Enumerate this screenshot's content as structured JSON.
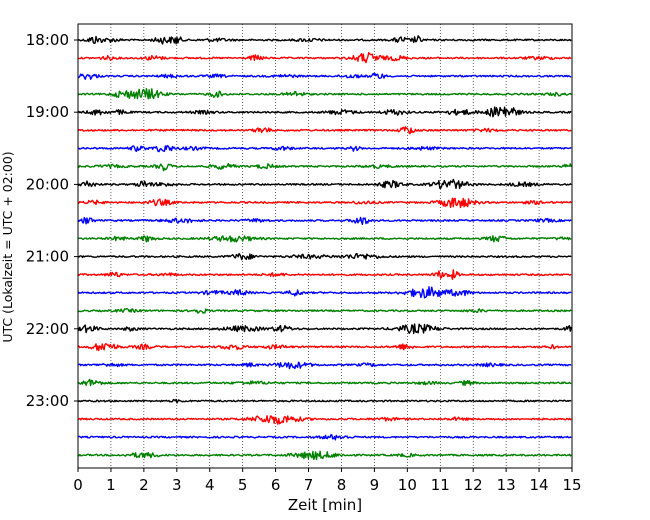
{
  "chart_data": {
    "type": "line",
    "title": "",
    "xlabel": "Zeit  [min]",
    "ylabel": "UTC (Lokalzeit = UTC + 02:00)",
    "xlim": [
      0,
      15
    ],
    "x_ticks": [
      "0",
      "1",
      "2",
      "3",
      "4",
      "5",
      "6",
      "7",
      "8",
      "9",
      "10",
      "11",
      "12",
      "13",
      "14",
      "15"
    ],
    "y_ticks": [
      "18:00",
      "19:00",
      "20:00",
      "21:00",
      "22:00",
      "23:00"
    ],
    "grid": "vertical dotted",
    "trace_count": 24,
    "first_trace": "18:00",
    "trace_interval_min": 15,
    "colors": [
      "#000000",
      "#ff0000",
      "#0000ff",
      "#008000"
    ],
    "series": [
      {
        "trace": "18:00",
        "color": "black",
        "bursts": [
          [
            0.5,
            0.45,
            0.3
          ],
          [
            1.0,
            0.2,
            0.4
          ],
          [
            2.6,
            0.4,
            0.4
          ],
          [
            3.0,
            0.5,
            0.2
          ],
          [
            4.2,
            0.15,
            0.6
          ],
          [
            7.0,
            0.15,
            0.6
          ],
          [
            9.8,
            0.35,
            0.3
          ],
          [
            10.3,
            0.45,
            0.2
          ]
        ]
      },
      {
        "trace": "18:15",
        "color": "red",
        "bursts": [
          [
            0.9,
            0.2,
            0.3
          ],
          [
            2.3,
            0.25,
            0.4
          ],
          [
            5.4,
            0.3,
            0.3
          ],
          [
            8.8,
            0.6,
            0.6
          ],
          [
            9.7,
            0.25,
            0.4
          ],
          [
            14.0,
            0.15,
            0.6
          ]
        ]
      },
      {
        "trace": "18:30",
        "color": "blue",
        "bursts": [
          [
            0.3,
            0.35,
            0.4
          ],
          [
            2.8,
            0.15,
            0.5
          ],
          [
            4.2,
            0.15,
            0.4
          ],
          [
            6.3,
            0.15,
            0.5
          ],
          [
            8.3,
            0.2,
            0.4
          ],
          [
            9.1,
            0.35,
            0.3
          ]
        ]
      },
      {
        "trace": "18:45",
        "color": "green",
        "bursts": [
          [
            1.4,
            0.4,
            0.5
          ],
          [
            2.1,
            0.65,
            0.6
          ],
          [
            4.2,
            0.35,
            0.3
          ],
          [
            6.6,
            0.3,
            0.4
          ],
          [
            14.5,
            0.15,
            0.4
          ]
        ]
      },
      {
        "trace": "19:00",
        "color": "black",
        "bursts": [
          [
            0.6,
            0.3,
            0.4
          ],
          [
            1.3,
            0.25,
            0.3
          ],
          [
            3.8,
            0.15,
            0.5
          ],
          [
            8.0,
            0.25,
            0.6
          ],
          [
            9.6,
            0.3,
            0.5
          ],
          [
            11.6,
            0.3,
            0.6
          ],
          [
            12.9,
            0.85,
            0.6
          ]
        ]
      },
      {
        "trace": "19:15",
        "color": "red",
        "bursts": [
          [
            5.6,
            0.4,
            0.3
          ],
          [
            10.0,
            0.5,
            0.3
          ],
          [
            12.4,
            0.15,
            0.5
          ]
        ]
      },
      {
        "trace": "19:30",
        "color": "blue",
        "bursts": [
          [
            1.8,
            0.3,
            0.3
          ],
          [
            2.6,
            0.45,
            0.4
          ],
          [
            3.5,
            0.15,
            0.5
          ],
          [
            6.2,
            0.2,
            0.4
          ],
          [
            8.4,
            0.3,
            0.2
          ],
          [
            10.5,
            0.15,
            0.6
          ]
        ]
      },
      {
        "trace": "19:45",
        "color": "green",
        "bursts": [
          [
            1.0,
            0.15,
            0.6
          ],
          [
            2.6,
            0.45,
            0.3
          ],
          [
            4.4,
            0.3,
            0.5
          ],
          [
            5.7,
            0.25,
            0.4
          ],
          [
            9.1,
            0.15,
            0.6
          ],
          [
            14.9,
            0.3,
            0.2
          ]
        ]
      },
      {
        "trace": "20:00",
        "color": "black",
        "bursts": [
          [
            0.3,
            0.4,
            0.3
          ],
          [
            2.0,
            0.4,
            0.3
          ],
          [
            2.6,
            0.2,
            0.4
          ],
          [
            9.5,
            0.4,
            0.5
          ],
          [
            11.3,
            0.6,
            0.7
          ],
          [
            13.5,
            0.2,
            0.6
          ]
        ]
      },
      {
        "trace": "20:15",
        "color": "red",
        "bursts": [
          [
            0.5,
            0.2,
            0.4
          ],
          [
            2.5,
            0.35,
            0.5
          ],
          [
            8.7,
            0.15,
            0.5
          ],
          [
            11.5,
            0.65,
            0.7
          ],
          [
            13.9,
            0.15,
            0.5
          ]
        ]
      },
      {
        "trace": "20:30",
        "color": "blue",
        "bursts": [
          [
            0.3,
            0.55,
            0.2
          ],
          [
            3.1,
            0.25,
            0.7
          ],
          [
            5.4,
            0.15,
            0.5
          ],
          [
            8.6,
            0.45,
            0.4
          ],
          [
            14.2,
            0.15,
            0.5
          ]
        ]
      },
      {
        "trace": "20:45",
        "color": "green",
        "bursts": [
          [
            1.2,
            0.2,
            0.4
          ],
          [
            2.1,
            0.35,
            0.3
          ],
          [
            4.7,
            0.35,
            0.9
          ],
          [
            12.7,
            0.35,
            0.4
          ],
          [
            14.7,
            0.15,
            0.3
          ]
        ]
      },
      {
        "trace": "21:00",
        "color": "black",
        "bursts": [
          [
            5.0,
            0.35,
            0.5
          ],
          [
            7.0,
            0.2,
            0.8
          ],
          [
            8.6,
            0.3,
            0.8
          ]
        ]
      },
      {
        "trace": "21:15",
        "color": "red",
        "bursts": [
          [
            1.1,
            0.3,
            0.3
          ],
          [
            2.7,
            0.15,
            0.4
          ],
          [
            6.0,
            0.15,
            0.5
          ],
          [
            11.0,
            0.4,
            0.3
          ],
          [
            11.4,
            0.5,
            0.2
          ]
        ]
      },
      {
        "trace": "21:30",
        "color": "blue",
        "bursts": [
          [
            4.1,
            0.2,
            0.5
          ],
          [
            4.9,
            0.3,
            0.4
          ],
          [
            6.6,
            0.35,
            0.3
          ],
          [
            10.6,
            0.65,
            0.8
          ],
          [
            11.6,
            0.3,
            0.5
          ]
        ]
      },
      {
        "trace": "21:45",
        "color": "green",
        "bursts": [
          [
            3.7,
            0.3,
            0.3
          ],
          [
            1.5,
            0.15,
            0.5
          ],
          [
            12.1,
            0.15,
            0.4
          ]
        ]
      },
      {
        "trace": "22:00",
        "color": "black",
        "bursts": [
          [
            0.3,
            0.4,
            0.4
          ],
          [
            1.6,
            0.2,
            0.3
          ],
          [
            5.0,
            0.3,
            0.8
          ],
          [
            6.2,
            0.35,
            0.4
          ],
          [
            10.3,
            0.55,
            0.8
          ],
          [
            14.9,
            0.3,
            0.2
          ]
        ]
      },
      {
        "trace": "22:15",
        "color": "red",
        "bursts": [
          [
            0.8,
            0.55,
            0.5
          ],
          [
            2.0,
            0.25,
            0.4
          ],
          [
            4.7,
            0.3,
            0.5
          ],
          [
            6.0,
            0.2,
            0.5
          ],
          [
            9.9,
            0.3,
            0.4
          ],
          [
            14.4,
            0.2,
            0.2
          ]
        ]
      },
      {
        "trace": "22:30",
        "color": "blue",
        "bursts": [
          [
            1.0,
            0.15,
            0.5
          ],
          [
            5.2,
            0.2,
            0.3
          ],
          [
            6.5,
            0.4,
            0.7
          ],
          [
            8.8,
            0.15,
            0.4
          ],
          [
            12.5,
            0.15,
            0.5
          ]
        ]
      },
      {
        "trace": "22:45",
        "color": "green",
        "bursts": [
          [
            0.4,
            0.4,
            0.4
          ],
          [
            5.3,
            0.15,
            0.8
          ],
          [
            10.6,
            0.15,
            0.4
          ],
          [
            11.8,
            0.25,
            0.3
          ]
        ]
      },
      {
        "trace": "23:00",
        "color": "black",
        "bursts": [
          [
            3.0,
            0.15,
            0.2
          ]
        ]
      },
      {
        "trace": "23:15",
        "color": "red",
        "bursts": [
          [
            6.0,
            0.55,
            1.0
          ],
          [
            9.4,
            0.15,
            0.5
          ],
          [
            11.5,
            0.15,
            0.4
          ]
        ]
      },
      {
        "trace": "23:30",
        "color": "blue",
        "bursts": [
          [
            7.8,
            0.25,
            0.6
          ]
        ]
      },
      {
        "trace": "23:45",
        "color": "green",
        "bursts": [
          [
            2.0,
            0.3,
            0.6
          ],
          [
            7.2,
            0.45,
            0.9
          ],
          [
            10.0,
            0.15,
            0.4
          ]
        ]
      }
    ]
  }
}
